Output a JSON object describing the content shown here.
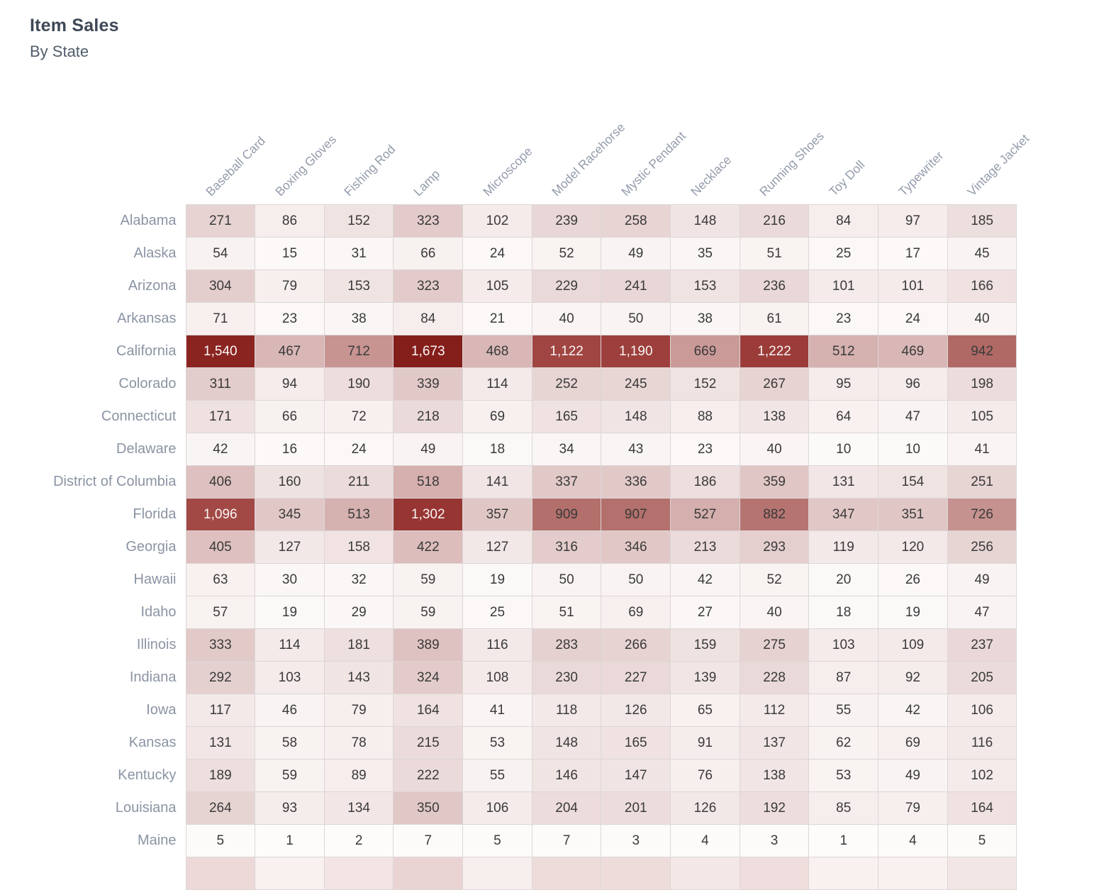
{
  "header": {
    "title": "Item Sales",
    "subtitle": "By State"
  },
  "colors": {
    "title": "#3e4856",
    "subtitle": "#515d6b",
    "row_label": "#8b94a4",
    "column_label": "#939cab",
    "cell_text": "#3a3a3a",
    "cell_text_inverse": "#faf5f4",
    "grid_line": "#ddd6d7",
    "heat_min": "#fdfcfb",
    "heat_max": "#841e1b"
  },
  "chart_data": {
    "type": "heatmap",
    "title": "Item Sales",
    "subtitle": "By State",
    "columns": [
      "Baseball Card",
      "Boxing Gloves",
      "Fishing Rod",
      "Lamp",
      "Microscope",
      "Model Racehorse",
      "Mystic Pendant",
      "Necklace",
      "Running Shoes",
      "Toy Doll",
      "Typewriter",
      "Vintage Jacket"
    ],
    "rows": [
      {
        "state": "Alabama",
        "values": [
          271,
          86,
          152,
          323,
          102,
          239,
          258,
          148,
          216,
          84,
          97,
          185
        ]
      },
      {
        "state": "Alaska",
        "values": [
          54,
          15,
          31,
          66,
          24,
          52,
          49,
          35,
          51,
          25,
          17,
          45
        ]
      },
      {
        "state": "Arizona",
        "values": [
          304,
          79,
          153,
          323,
          105,
          229,
          241,
          153,
          236,
          101,
          101,
          166
        ]
      },
      {
        "state": "Arkansas",
        "values": [
          71,
          23,
          38,
          84,
          21,
          40,
          50,
          38,
          61,
          23,
          24,
          40
        ]
      },
      {
        "state": "California",
        "values": [
          1540,
          467,
          712,
          1673,
          468,
          1122,
          1190,
          669,
          1222,
          512,
          469,
          942
        ]
      },
      {
        "state": "Colorado",
        "values": [
          311,
          94,
          190,
          339,
          114,
          252,
          245,
          152,
          267,
          95,
          96,
          198
        ]
      },
      {
        "state": "Connecticut",
        "values": [
          171,
          66,
          72,
          218,
          69,
          165,
          148,
          88,
          138,
          64,
          47,
          105
        ]
      },
      {
        "state": "Delaware",
        "values": [
          42,
          16,
          24,
          49,
          18,
          34,
          43,
          23,
          40,
          10,
          10,
          41
        ]
      },
      {
        "state": "District of Columbia",
        "values": [
          406,
          160,
          211,
          518,
          141,
          337,
          336,
          186,
          359,
          131,
          154,
          251
        ]
      },
      {
        "state": "Florida",
        "values": [
          1096,
          345,
          513,
          1302,
          357,
          909,
          907,
          527,
          882,
          347,
          351,
          726
        ]
      },
      {
        "state": "Georgia",
        "values": [
          405,
          127,
          158,
          422,
          127,
          316,
          346,
          213,
          293,
          119,
          120,
          256
        ]
      },
      {
        "state": "Hawaii",
        "values": [
          63,
          30,
          32,
          59,
          19,
          50,
          50,
          42,
          52,
          20,
          26,
          49
        ]
      },
      {
        "state": "Idaho",
        "values": [
          57,
          19,
          29,
          59,
          25,
          51,
          69,
          27,
          40,
          18,
          19,
          47
        ]
      },
      {
        "state": "Illinois",
        "values": [
          333,
          114,
          181,
          389,
          116,
          283,
          266,
          159,
          275,
          103,
          109,
          237
        ]
      },
      {
        "state": "Indiana",
        "values": [
          292,
          103,
          143,
          324,
          108,
          230,
          227,
          139,
          228,
          87,
          92,
          205
        ]
      },
      {
        "state": "Iowa",
        "values": [
          117,
          46,
          79,
          164,
          41,
          118,
          126,
          65,
          112,
          55,
          42,
          106
        ]
      },
      {
        "state": "Kansas",
        "values": [
          131,
          58,
          78,
          215,
          53,
          148,
          165,
          91,
          137,
          62,
          69,
          116
        ]
      },
      {
        "state": "Kentucky",
        "values": [
          189,
          59,
          89,
          222,
          55,
          146,
          147,
          76,
          138,
          53,
          49,
          102
        ]
      },
      {
        "state": "Louisiana",
        "values": [
          264,
          93,
          134,
          350,
          106,
          204,
          201,
          126,
          192,
          85,
          79,
          164
        ]
      },
      {
        "state": "Maine",
        "values": [
          5,
          1,
          2,
          7,
          5,
          7,
          3,
          4,
          3,
          1,
          4,
          5
        ]
      }
    ],
    "value_range": [
      0,
      1673
    ],
    "number_format": "thousands-comma",
    "legend_position": "none",
    "grid": true,
    "palette_stops": [
      [
        0.0,
        "#fdfcfb"
      ],
      [
        0.05,
        "#f6eeed"
      ],
      [
        0.16,
        "#e6d3d2"
      ],
      [
        0.31,
        "#d5b0af"
      ],
      [
        0.43,
        "#c69390"
      ],
      [
        0.56,
        "#b06a66"
      ],
      [
        0.66,
        "#a14744"
      ],
      [
        0.78,
        "#973532"
      ],
      [
        0.92,
        "#8a2421"
      ],
      [
        1.0,
        "#841e1b"
      ]
    ],
    "white_text_threshold": 0.62,
    "truncated_next_row_colors": [
      "#ecd9d8",
      "#f8f1f0",
      "#f2e5e4",
      "#ead4d3",
      "#f7efee",
      "#eedcdb",
      "#eedcdb",
      "#f4e8e7",
      "#efdedd",
      "#f8f1f0",
      "#f8f1f0",
      "#f3e7e6"
    ]
  }
}
